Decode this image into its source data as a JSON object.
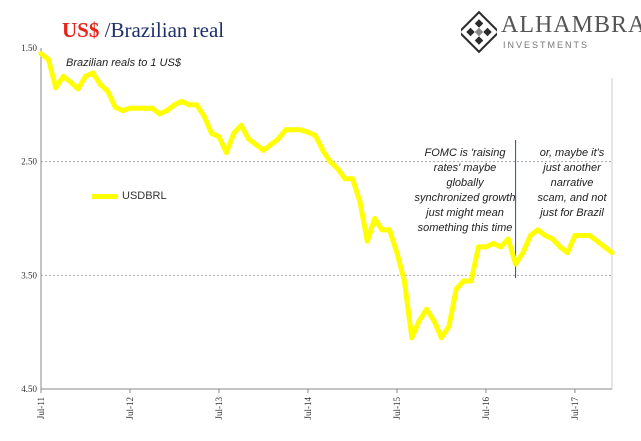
{
  "title": {
    "part1": "US$",
    "part2": " /Brazilian real"
  },
  "brand": {
    "name": "ALHAMBRA",
    "sub": "INVESTMENTS",
    "icon": "diamond-lattice-icon",
    "colors": {
      "dark": "#2a2a2a",
      "grey": "#888888"
    }
  },
  "annotations": {
    "subtitle": "Brazilian reals to 1 US$",
    "note1": [
      "FOMC is 'raising",
      "rates' maybe",
      "globally",
      "synchronized growth",
      "just might mean",
      "something this time"
    ],
    "note2": [
      "or, maybe it's",
      "just another",
      "narrative",
      "scam, and not",
      "just for Brazil"
    ]
  },
  "colors": {
    "series": "#ffff00",
    "title_red": "#e8241c",
    "title_blue": "#1f2f6b",
    "marker_line": "#1f4e9c",
    "grid": "#aaaaaa"
  },
  "chart_data": {
    "type": "line",
    "title": "US$ /Brazilian real",
    "subtitle": "Brazilian reals to 1 US$",
    "y_inverted": true,
    "ylim": [
      1.5,
      4.5
    ],
    "yticks": [
      "1.50",
      "2.50",
      "3.50",
      "4.50"
    ],
    "ytick_values": [
      1.5,
      2.5,
      3.5,
      4.5
    ],
    "gridlines_at": [
      2.5,
      3.5
    ],
    "xticks": [
      "Jul-11",
      "Jul-12",
      "Jul-13",
      "Jul-14",
      "Jul-15",
      "Jul-16",
      "Jul-17"
    ],
    "xlim": [
      "2011-07",
      "2017-12"
    ],
    "legend": {
      "label": "USDBRL",
      "placement": "left-middle"
    },
    "vertical_marker": "2016-11",
    "series": [
      {
        "name": "USDBRL",
        "points": [
          [
            "2011-07",
            1.55
          ],
          [
            "2011-08",
            1.6
          ],
          [
            "2011-09",
            1.85
          ],
          [
            "2011-10",
            1.75
          ],
          [
            "2011-11",
            1.8
          ],
          [
            "2011-12",
            1.86
          ],
          [
            "2012-01",
            1.75
          ],
          [
            "2012-02",
            1.72
          ],
          [
            "2012-03",
            1.82
          ],
          [
            "2012-04",
            1.88
          ],
          [
            "2012-05",
            2.02
          ],
          [
            "2012-06",
            2.05
          ],
          [
            "2012-07",
            2.03
          ],
          [
            "2012-08",
            2.03
          ],
          [
            "2012-09",
            2.03
          ],
          [
            "2012-10",
            2.03
          ],
          [
            "2012-11",
            2.08
          ],
          [
            "2012-12",
            2.05
          ],
          [
            "2013-01",
            2.0
          ],
          [
            "2013-02",
            1.97
          ],
          [
            "2013-03",
            2.0
          ],
          [
            "2013-04",
            2.0
          ],
          [
            "2013-05",
            2.1
          ],
          [
            "2013-06",
            2.25
          ],
          [
            "2013-07",
            2.28
          ],
          [
            "2013-08",
            2.42
          ],
          [
            "2013-09",
            2.25
          ],
          [
            "2013-10",
            2.18
          ],
          [
            "2013-11",
            2.3
          ],
          [
            "2013-12",
            2.35
          ],
          [
            "2014-01",
            2.4
          ],
          [
            "2014-02",
            2.35
          ],
          [
            "2014-03",
            2.3
          ],
          [
            "2014-04",
            2.22
          ],
          [
            "2014-05",
            2.22
          ],
          [
            "2014-06",
            2.22
          ],
          [
            "2014-07",
            2.24
          ],
          [
            "2014-08",
            2.27
          ],
          [
            "2014-09",
            2.4
          ],
          [
            "2014-10",
            2.5
          ],
          [
            "2014-11",
            2.56
          ],
          [
            "2014-12",
            2.65
          ],
          [
            "2015-01",
            2.65
          ],
          [
            "2015-02",
            2.85
          ],
          [
            "2015-03",
            3.2
          ],
          [
            "2015-04",
            3.0
          ],
          [
            "2015-05",
            3.1
          ],
          [
            "2015-06",
            3.1
          ],
          [
            "2015-07",
            3.3
          ],
          [
            "2015-08",
            3.55
          ],
          [
            "2015-09",
            4.05
          ],
          [
            "2015-10",
            3.9
          ],
          [
            "2015-11",
            3.8
          ],
          [
            "2015-12",
            3.9
          ],
          [
            "2016-01",
            4.05
          ],
          [
            "2016-02",
            3.95
          ],
          [
            "2016-03",
            3.62
          ],
          [
            "2016-04",
            3.55
          ],
          [
            "2016-05",
            3.55
          ],
          [
            "2016-06",
            3.25
          ],
          [
            "2016-07",
            3.25
          ],
          [
            "2016-08",
            3.22
          ],
          [
            "2016-09",
            3.25
          ],
          [
            "2016-10",
            3.18
          ],
          [
            "2016-11",
            3.4
          ],
          [
            "2016-12",
            3.3
          ],
          [
            "2017-01",
            3.15
          ],
          [
            "2017-02",
            3.1
          ],
          [
            "2017-03",
            3.15
          ],
          [
            "2017-04",
            3.18
          ],
          [
            "2017-05",
            3.25
          ],
          [
            "2017-06",
            3.3
          ],
          [
            "2017-07",
            3.15
          ],
          [
            "2017-08",
            3.15
          ],
          [
            "2017-09",
            3.15
          ],
          [
            "2017-10",
            3.2
          ],
          [
            "2017-11",
            3.25
          ],
          [
            "2017-12",
            3.3
          ]
        ]
      }
    ]
  }
}
